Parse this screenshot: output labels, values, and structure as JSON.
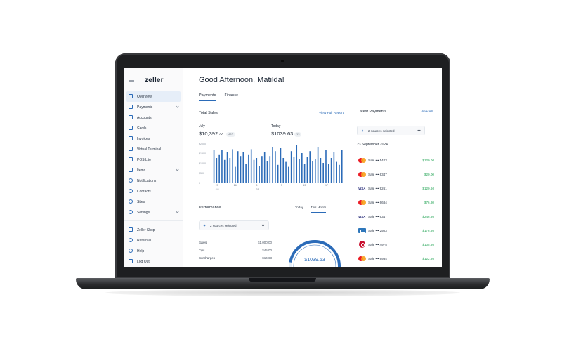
{
  "app": {
    "logo": "zeller",
    "greeting": "Good Afternoon, Matilda!"
  },
  "sidebar": {
    "items": [
      {
        "label": "Overview",
        "icon": "chart-icon",
        "active": true
      },
      {
        "label": "Payments",
        "icon": "payments-icon",
        "expandable": true
      },
      {
        "label": "Accounts",
        "icon": "accounts-icon"
      },
      {
        "label": "Cards",
        "icon": "card-icon"
      },
      {
        "label": "Invoices",
        "icon": "invoice-icon"
      },
      {
        "label": "Virtual Terminal",
        "icon": "terminal-icon"
      },
      {
        "label": "POS Lite",
        "icon": "pos-icon"
      },
      {
        "label": "Items",
        "icon": "grid-icon",
        "expandable": true
      },
      {
        "label": "Notifications",
        "icon": "bell-icon"
      },
      {
        "label": "Contacts",
        "icon": "contacts-icon"
      },
      {
        "label": "Sites",
        "icon": "pin-icon"
      },
      {
        "label": "Settings",
        "icon": "gear-icon",
        "expandable": true
      }
    ],
    "footer": [
      {
        "label": "Zeller Shop",
        "icon": "shop-icon"
      },
      {
        "label": "Referrals",
        "icon": "chat-icon"
      },
      {
        "label": "Help",
        "icon": "help-icon"
      },
      {
        "label": "Log Out",
        "icon": "logout-icon"
      }
    ]
  },
  "tabs": [
    "Payments",
    "Finance"
  ],
  "total_sales": {
    "title": "Total Sales",
    "link": "View Full Report",
    "month_label": "July",
    "month_value": "$10,392",
    "month_cents": ".72",
    "month_count": "462",
    "today_label": "Today",
    "today_value": "$1039.63",
    "today_count": "12"
  },
  "chart_data": {
    "type": "bar",
    "ylim": [
      0,
      2000
    ],
    "y_ticks": [
      "$2000",
      "$1500",
      "$1000",
      "$500",
      "0"
    ],
    "x_ticks": [
      "23",
      "26",
      "3",
      "7",
      "13",
      "17"
    ],
    "x_sub_ticks": [
      "Jun",
      "Jul"
    ],
    "values": [
      1650,
      1250,
      1400,
      1650,
      1150,
      1550,
      1250,
      1700,
      800,
      1600,
      1350,
      1550,
      950,
      1400,
      1700,
      1150,
      1250,
      850,
      1350,
      1550,
      1100,
      1350,
      1800,
      1600,
      900,
      1750,
      1250,
      1050,
      800,
      1600,
      1300,
      1900,
      1200,
      1500,
      950,
      1300,
      1600,
      1100,
      1200,
      1800,
      1250,
      1000,
      1650,
      950,
      1250,
      1550,
      1050,
      900,
      1650
    ],
    "color": "#2b6bb8"
  },
  "performance": {
    "title": "Performance",
    "tabs": [
      "Today",
      "This Month"
    ],
    "active_tab": "This Month",
    "sources": "2 sources selected",
    "rows": [
      {
        "label": "Sales",
        "value": "$1,000.00"
      },
      {
        "label": "Tips",
        "value": "$45.00"
      },
      {
        "label": "Surcharges",
        "value": "$14.63"
      }
    ],
    "total": "$1039.63",
    "progress": 0.7
  },
  "latest_payments": {
    "title": "Latest Payments",
    "link": "View All",
    "sources": "2 sources selected",
    "date": "23 September 2024",
    "items": [
      {
        "card": "mastercard-icon",
        "desc": "Sale ••• 5423",
        "amount": "$120.00"
      },
      {
        "card": "mastercard-icon",
        "desc": "Sale ••• 6347",
        "amount": "$20.00"
      },
      {
        "card": "visa-icon",
        "desc": "Sale ••• 9261",
        "amount": "$120.60"
      },
      {
        "card": "mastercard-icon",
        "desc": "Sale ••• 6684",
        "amount": "$76.80"
      },
      {
        "card": "visa-icon",
        "desc": "Sale ••• 6347",
        "amount": "$246.80"
      },
      {
        "card": "amex-icon",
        "desc": "Sale ••• 2503",
        "amount": "$176.80"
      },
      {
        "card": "eftpos-icon",
        "desc": "Sale ••• 4975",
        "amount": "$105.80"
      },
      {
        "card": "mastercard-icon",
        "desc": "Sale ••• 6934",
        "amount": "$122.80"
      }
    ],
    "amount_color": "#23a455"
  }
}
